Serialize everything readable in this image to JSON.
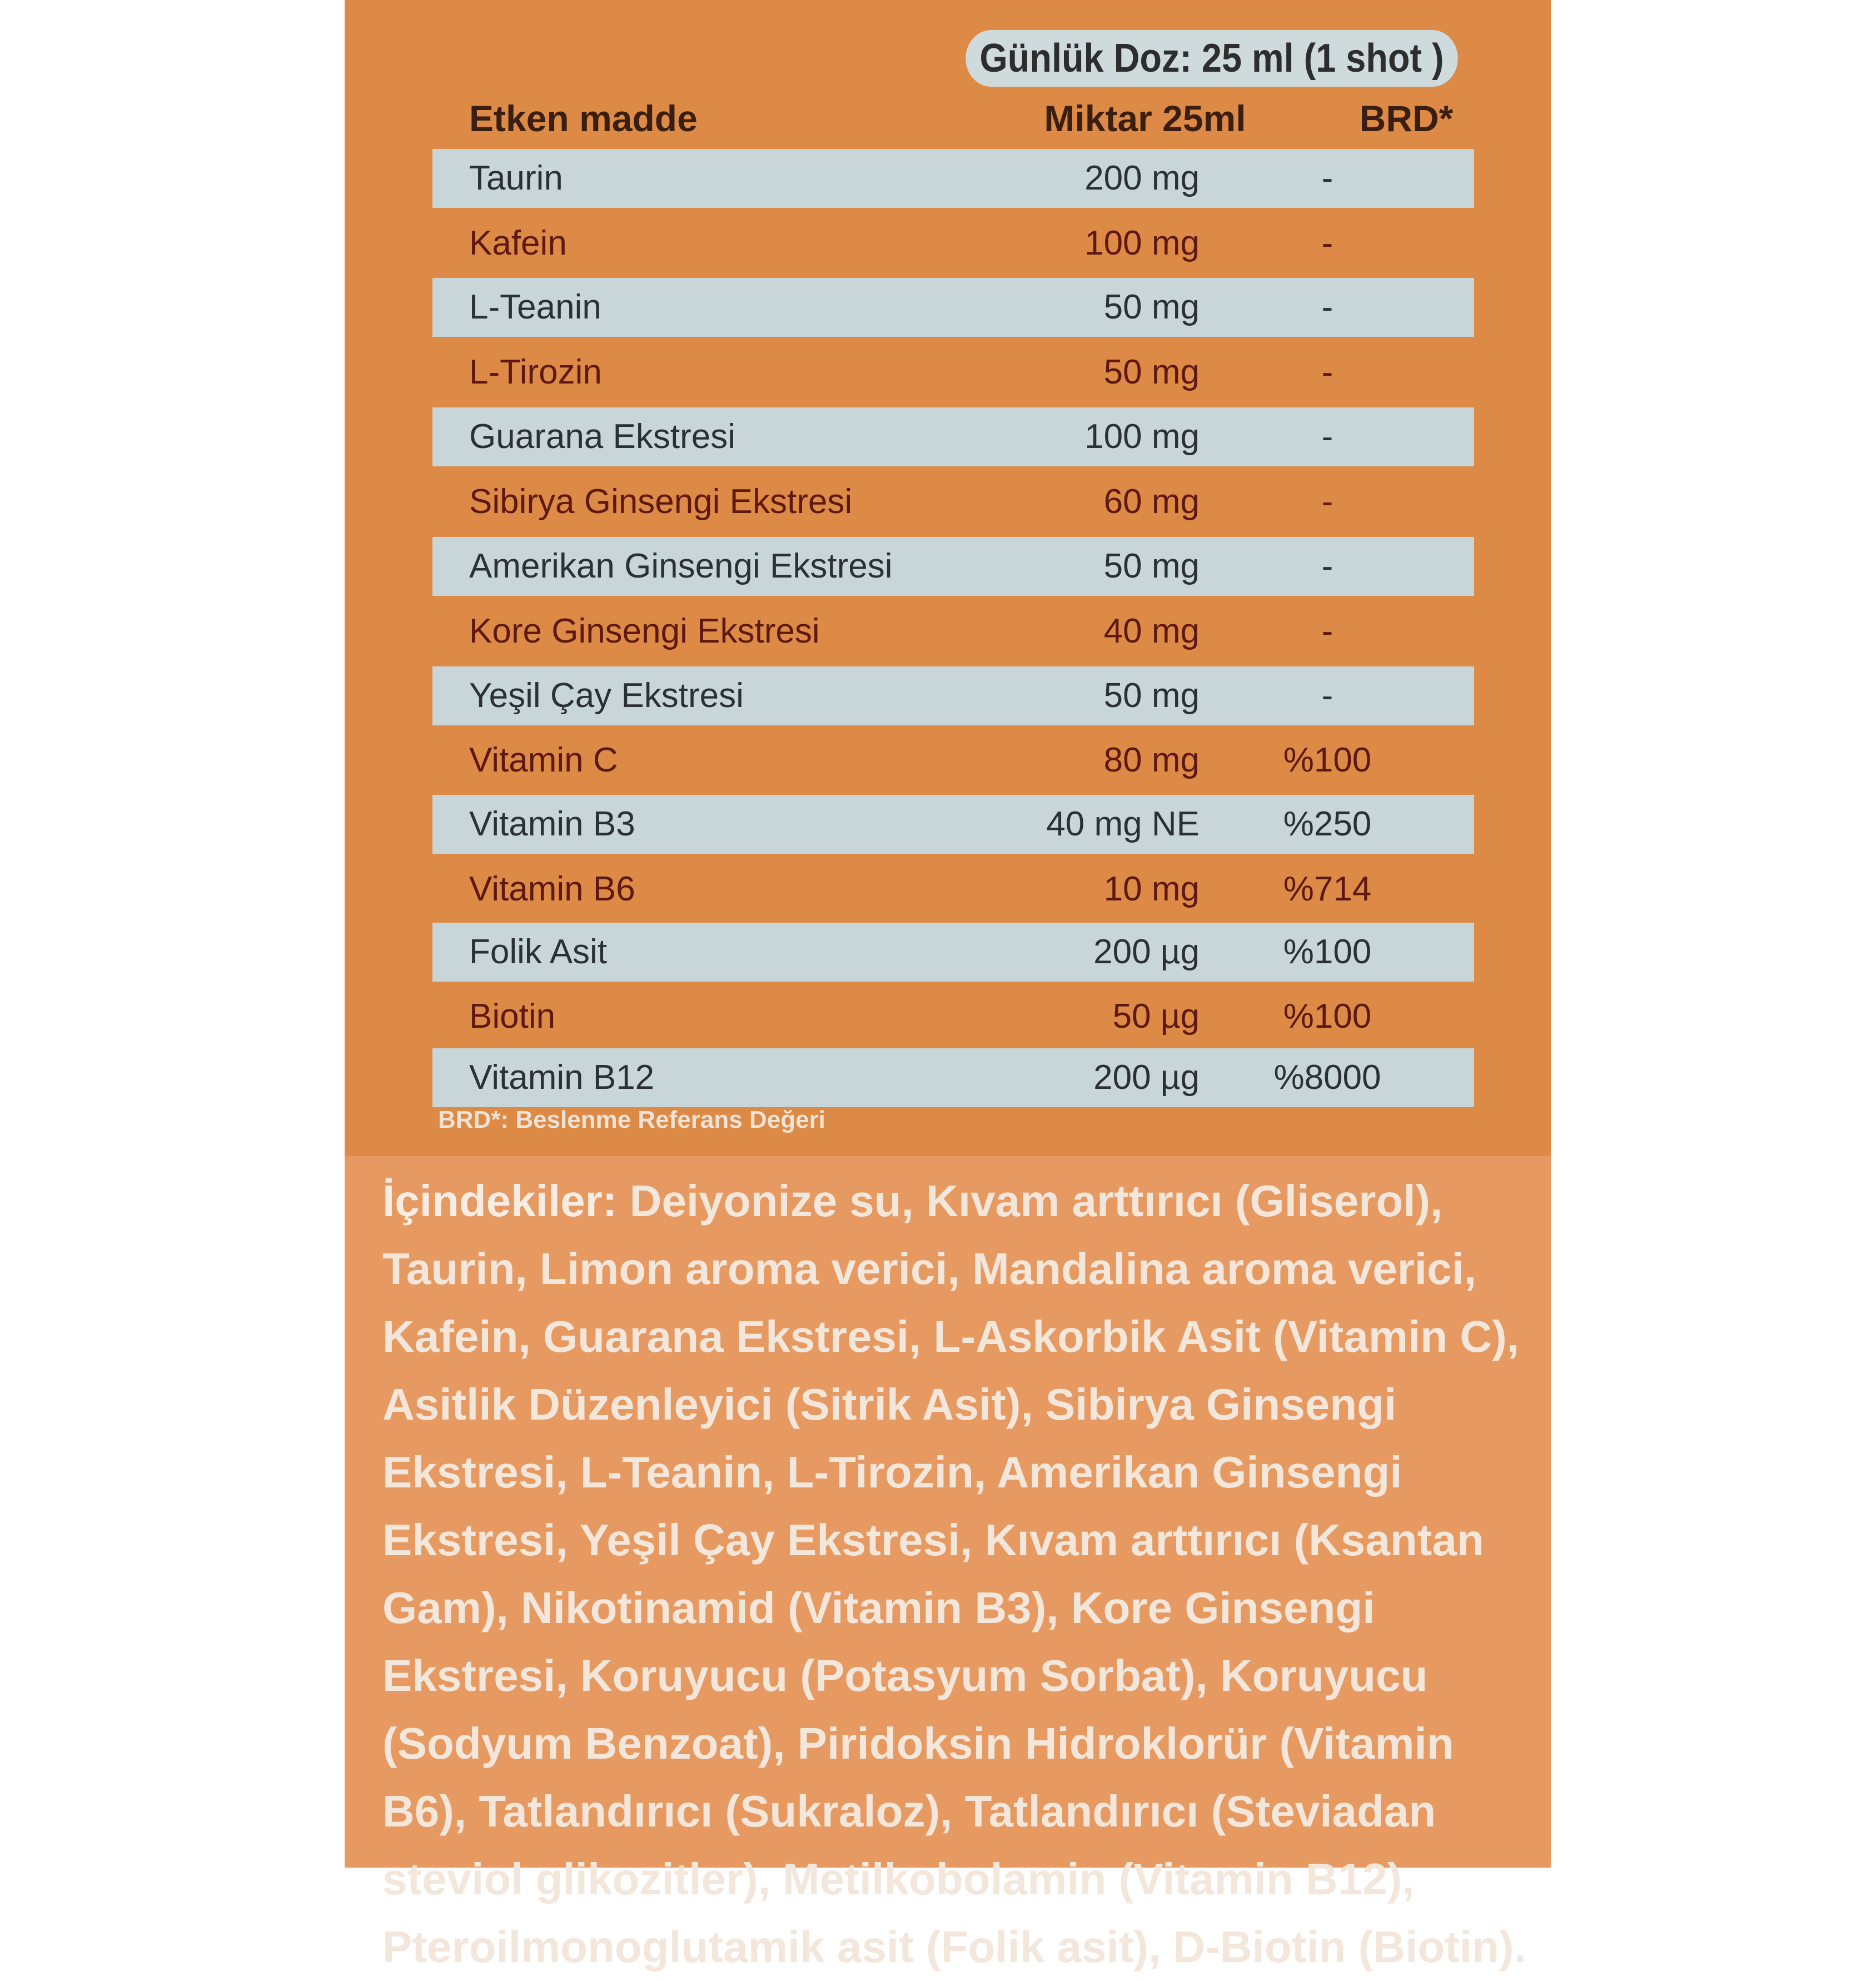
{
  "dose_label": "Günlük Doz: 25 ml (1 shot )",
  "headers": {
    "name": "Etken madde",
    "amount": "Miktar 25ml",
    "brd": "BRD*"
  },
  "rows": [
    {
      "name": "Taurin",
      "amount": "200 mg",
      "brd": "-"
    },
    {
      "name": "Kafein",
      "amount": "100 mg",
      "brd": "-"
    },
    {
      "name": "L-Teanin",
      "amount": "50 mg",
      "brd": "-"
    },
    {
      "name": "L-Tirozin",
      "amount": "50 mg",
      "brd": "-"
    },
    {
      "name": "Guarana Ekstresi",
      "amount": "100 mg",
      "brd": "-"
    },
    {
      "name": "Sibirya Ginsengi Ekstresi",
      "amount": "60 mg",
      "brd": "-"
    },
    {
      "name": "Amerikan Ginsengi Ekstresi",
      "amount": "50 mg",
      "brd": "-"
    },
    {
      "name": "Kore Ginsengi Ekstresi",
      "amount": "40 mg",
      "brd": "-"
    },
    {
      "name": "Yeşil Çay Ekstresi",
      "amount": "50 mg",
      "brd": "-"
    },
    {
      "name": "Vitamin C",
      "amount": "80 mg",
      "brd": "%100"
    },
    {
      "name": "Vitamin B3",
      "amount": "40 mg NE",
      "brd": "%250"
    },
    {
      "name": "Vitamin B6",
      "amount": "10 mg",
      "brd": "%714"
    },
    {
      "name": "Folik Asit",
      "amount": "200 µg",
      "brd": "%100"
    },
    {
      "name": "Biotin",
      "amount": "50 µg",
      "brd": "%100"
    },
    {
      "name": "Vitamin B12",
      "amount": "200 µg",
      "brd": "%8000"
    }
  ],
  "footnote": "BRD*: Beslenme Referans Değeri",
  "ingredients": {
    "label": "İçindekiler:",
    "text": "Deiyonize su, Kıvam arttırıcı (Gliserol), Taurin, Limon aroma verici, Mandalina aroma verici, Kafein, Guarana Ekstresi, L-Askorbik Asit (Vitamin C), Asitlik Düzenleyici (Sitrik Asit), Sibirya Ginsengi Ekstresi, L-Teanin, L-Tirozin, Amerikan Ginsengi Ekstresi, Yeşil Çay Ekstresi, Kıvam arttırıcı (Ksantan Gam), Nikotinamid (Vitamin B3), Kore Ginsengi Ekstresi, Koruyucu (Potasyum Sorbat), Koruyucu (Sodyum Benzoat), Piridoksin Hidroklorür (Vitamin B6), Tatlandırıcı (Sukraloz), Tatlandırıcı (Steviadan steviol glikozitler), Metilkobolamin (Vitamin B12), Pteroilmonoglutamik asit (Folik asit), D-Biotin (Biotin)."
  }
}
